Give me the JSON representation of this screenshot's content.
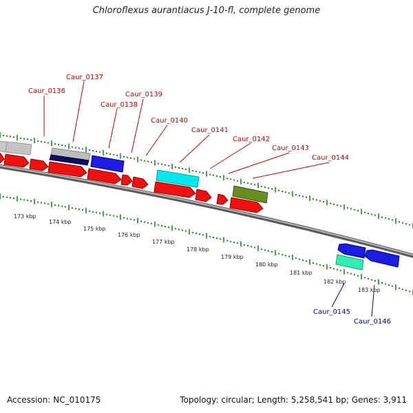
{
  "title": "Chloroflexus aurantiacus J-10-fl, complete genome",
  "footer": {
    "accession": "Accession: NC_010175",
    "topology": "Topology: circular; Length: 5,258,541 bp; Genes: 3,911"
  },
  "colors": {
    "forward_label": "#cc0000",
    "reverse_label": "#0000aa",
    "cds": "#ee1111",
    "tick": "#1a8a1a"
  },
  "scale": {
    "labels": [
      "173 kbp",
      "174 kbp",
      "175 kbp",
      "176 kbp",
      "177 kbp",
      "178 kbp",
      "179 kbp",
      "180 kbp",
      "181 kbp",
      "182 kbp",
      "183 kbp"
    ]
  },
  "gene_labels": {
    "forward": [
      "Caur_0136",
      "Caur_0137",
      "Caur_0138",
      "Caur_0139",
      "Caur_0140",
      "Caur_0141",
      "Caur_0142",
      "Caur_0143",
      "Caur_0144"
    ],
    "reverse": [
      "Caur_0145",
      "Caur_0146"
    ]
  }
}
